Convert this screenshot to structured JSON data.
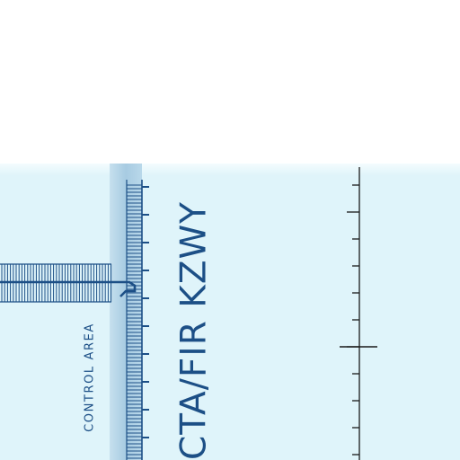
{
  "map": {
    "airspace_label": "CTA/FIR KZWY",
    "control_area_label": "CONTROL AREA",
    "colors": {
      "water": "#dff4fa",
      "land": "#ffffff",
      "boundary_band": "#aacde3",
      "linework": "#1c4f86",
      "lat_line": "#1a1a1a"
    }
  }
}
